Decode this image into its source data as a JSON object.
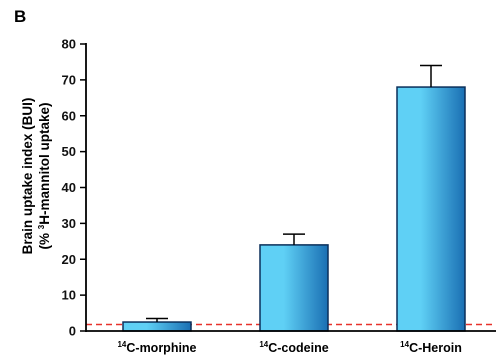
{
  "panel_label": "B",
  "chart_data": {
    "type": "bar",
    "categories": [
      {
        "sup": "14",
        "text": "C-morphine"
      },
      {
        "sup": "14",
        "text": "C-codeine"
      },
      {
        "sup": "14",
        "text": "C-Heroin"
      }
    ],
    "values": [
      2.5,
      24.0,
      68.0
    ],
    "errors": [
      1.0,
      3.0,
      6.0
    ],
    "ylabel_line1": "Brain uptake index (BUI)",
    "ylabel_line2": {
      "pre": "(% ",
      "sup": "3",
      "post": "H-mannitol uptake)"
    },
    "ylim": [
      0,
      80
    ],
    "yticks": [
      0,
      10,
      20,
      30,
      40,
      50,
      60,
      70,
      80
    ],
    "reference_line": {
      "value": 1.8,
      "color": "#e8322c",
      "style": "dashed"
    },
    "bar_color_light": "#5fd0f5",
    "bar_color_dark": "#1a6fb3",
    "grid": false,
    "legend": "none"
  }
}
